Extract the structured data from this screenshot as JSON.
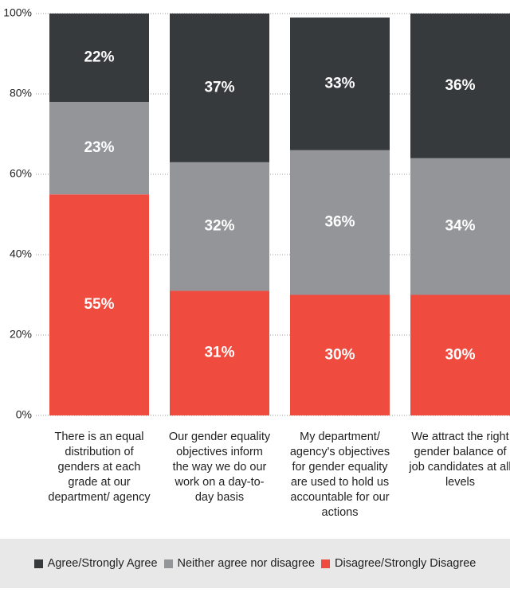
{
  "chart_data": {
    "type": "stacked_bar",
    "categories": [
      "There is an equal distribution of genders at each grade at our department/ agency",
      "Our gender equality objectives inform the way we do our work on a day-to-day basis",
      "My department/ agency's objectives for gender equality are used to hold us accountable for our actions",
      "We attract the right gender balance of job candidates at all levels"
    ],
    "series": [
      {
        "name": "Agree/Strongly Agree",
        "color": "#363a3c",
        "values": [
          22,
          37,
          33,
          36
        ],
        "value_labels": [
          "22%",
          "37%",
          "33%",
          "36%"
        ]
      },
      {
        "name": "Neither agree nor disagree",
        "color": "#939598",
        "values": [
          23,
          32,
          36,
          34
        ],
        "value_labels": [
          "23%",
          "32%",
          "36%",
          "34%"
        ]
      },
      {
        "name": "Disagree/Strongly Disagree",
        "color": "#ef4b3f",
        "values": [
          55,
          31,
          30,
          30
        ],
        "value_labels": [
          "55%",
          "31%",
          "30%",
          "30%"
        ]
      }
    ],
    "ylim": [
      0,
      100
    ],
    "yticks": [
      {
        "value": 0,
        "label": "0%"
      },
      {
        "value": 20,
        "label": "20%"
      },
      {
        "value": 40,
        "label": "40%"
      },
      {
        "value": 60,
        "label": "60%"
      },
      {
        "value": 80,
        "label": "80%"
      },
      {
        "value": 100,
        "label": "100%"
      }
    ],
    "grid": true
  }
}
